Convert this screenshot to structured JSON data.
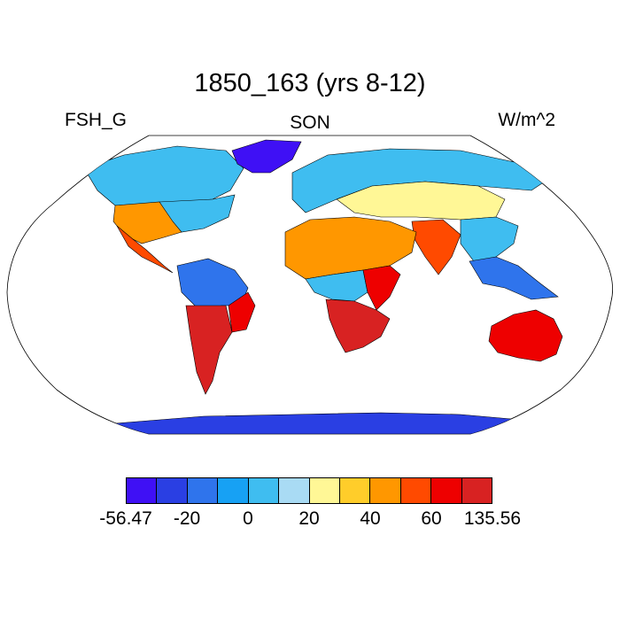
{
  "title": "1850_163 (yrs 8-12)",
  "variable_label": "FSH_G",
  "season_label": "SON",
  "units_label": "W/m^2",
  "colorbar": {
    "colors": [
      "#3f10f5",
      "#2a3fe3",
      "#2f74ec",
      "#17a1f4",
      "#3fbdf0",
      "#a9dbf4",
      "#fff796",
      "#ffcd2a",
      "#ff9700",
      "#ff4a00",
      "#ee0000",
      "#d82222"
    ],
    "labels": [
      {
        "text": "-56.47",
        "boundary": 0
      },
      {
        "text": "-20",
        "boundary": 2
      },
      {
        "text": "0",
        "boundary": 4
      },
      {
        "text": "20",
        "boundary": 6
      },
      {
        "text": "40",
        "boundary": 8
      },
      {
        "text": "60",
        "boundary": 10
      },
      {
        "text": "135.56",
        "boundary": 12
      }
    ]
  },
  "map": {
    "projection": "Robinson",
    "regions": [
      {
        "name": "greenland",
        "color": "#3f10f5"
      },
      {
        "name": "canada-arctic",
        "color": "#3fbdf0"
      },
      {
        "name": "usa-southwest",
        "color": "#ff9700"
      },
      {
        "name": "usa-east",
        "color": "#3fbdf0"
      },
      {
        "name": "mexico",
        "color": "#ff4a00"
      },
      {
        "name": "south-america-north",
        "color": "#2f74ec"
      },
      {
        "name": "brazil-east",
        "color": "#ee0000"
      },
      {
        "name": "south-america-south",
        "color": "#d82222"
      },
      {
        "name": "europe-russia",
        "color": "#3fbdf0"
      },
      {
        "name": "central-asia",
        "color": "#fff796"
      },
      {
        "name": "sahara-arabia",
        "color": "#ff9700"
      },
      {
        "name": "east-africa",
        "color": "#ee0000"
      },
      {
        "name": "central-africa",
        "color": "#3fbdf0"
      },
      {
        "name": "southern-africa",
        "color": "#d82222"
      },
      {
        "name": "india",
        "color": "#ff4a00"
      },
      {
        "name": "china-east",
        "color": "#3fbdf0"
      },
      {
        "name": "southeast-asia",
        "color": "#2f74ec"
      },
      {
        "name": "australia",
        "color": "#ee0000"
      },
      {
        "name": "antarctica",
        "color": "#2a3fe3"
      }
    ]
  }
}
